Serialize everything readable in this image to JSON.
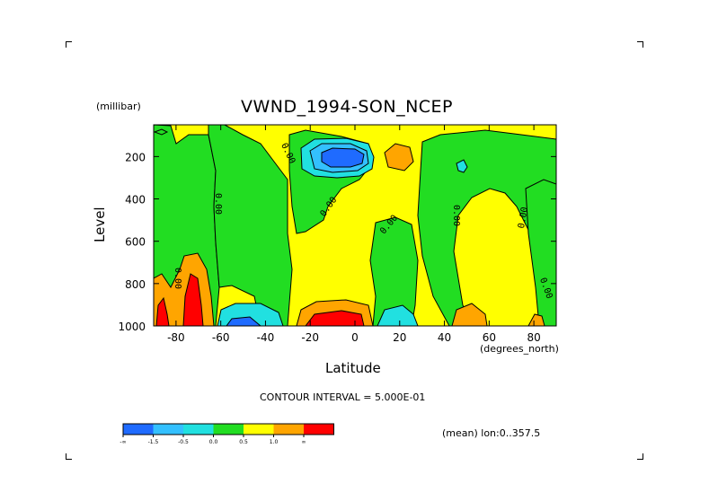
{
  "chart_data": {
    "type": "contour",
    "title": "VWND_1994-SON_NCEP",
    "xlabel": "Latitude",
    "ylabel": "Level",
    "x_units": "(degrees_north)",
    "y_units": "(millibar)",
    "xlim": [
      -90,
      90
    ],
    "ylim": [
      1000,
      50
    ],
    "y_inverted": true,
    "x_ticks": [
      -80,
      -60,
      -40,
      -20,
      0,
      20,
      40,
      60,
      80
    ],
    "x_tick_labels": [
      "-80",
      "-60",
      "-40",
      "-20",
      "0",
      "20",
      "40",
      "60",
      "80"
    ],
    "y_ticks": [
      200,
      400,
      600,
      800,
      1000
    ],
    "y_tick_labels": [
      "200",
      "400",
      "600",
      "800",
      "1000"
    ],
    "contour_interval_text": "CONTOUR INTERVAL = 5.000E-01",
    "subtitle": "(mean) lon:0..357.5",
    "zero_contour_label": "0.00",
    "colorbar": {
      "colors": [
        "#1f6bff",
        "#33c0ff",
        "#21e0e0",
        "#22dd22",
        "#ffff00",
        "#ffa500",
        "#ff0000"
      ],
      "labels": [
        "-∞",
        "-1.5",
        "-0.5",
        "0.0",
        "0.5",
        "1.0",
        "∞"
      ]
    },
    "grid": false
  }
}
